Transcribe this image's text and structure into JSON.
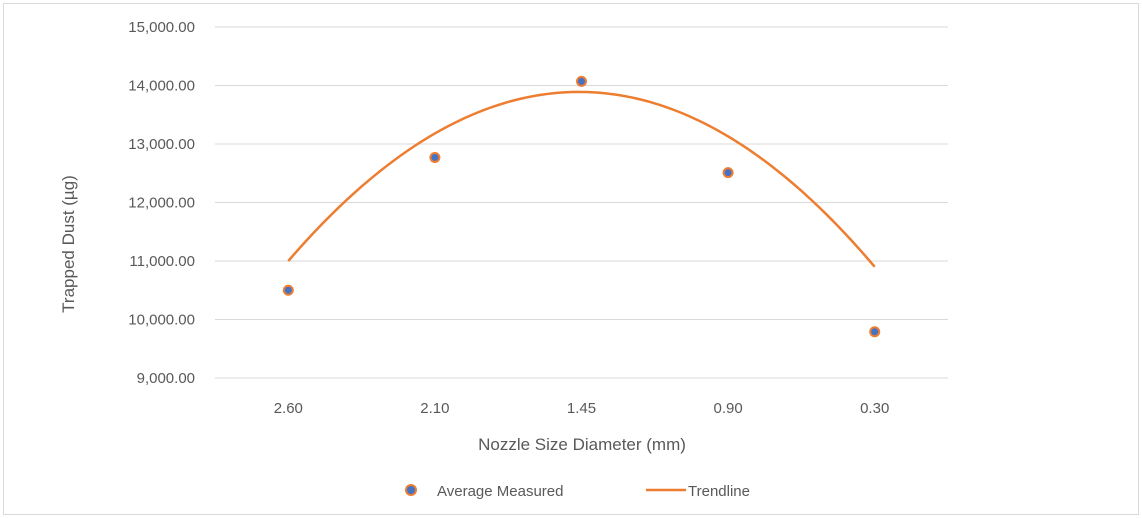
{
  "chart_data": {
    "type": "scatter",
    "title": "",
    "xlabel": "Nozzle Size Diameter  (mm)",
    "ylabel": "Trapped Dust (µg)",
    "categories": [
      "2.60",
      "2.10",
      "1.45",
      "0.90",
      "0.30"
    ],
    "ylim": [
      9000,
      15000
    ],
    "yticks": [
      "9,000.00",
      "10,000.00",
      "11,000.00",
      "12,000.00",
      "13,000.00",
      "14,000.00",
      "15,000.00"
    ],
    "grid": "horizontal",
    "legend_position": "bottom",
    "series": [
      {
        "name": "Average Measured",
        "kind": "markers",
        "values": [
          10500,
          12770,
          14070,
          12510,
          9790
        ],
        "fill_color": "#4472c4",
        "edge_color": "#ed7d31"
      },
      {
        "name": "Trendline",
        "kind": "polynomial-2",
        "coefficients": [
          7350,
          4385,
          -735
        ],
        "color": "#ed7d31"
      }
    ]
  }
}
